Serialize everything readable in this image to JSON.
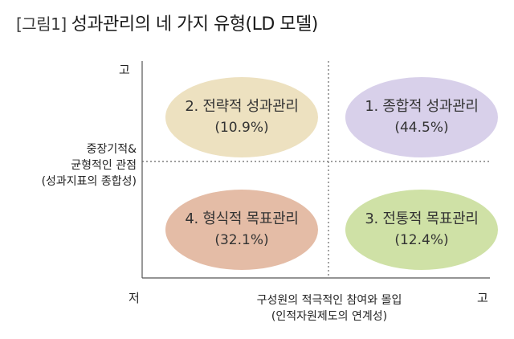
{
  "title": {
    "tag": "[그림1]",
    "text": "성과관리의 네 가지 유형(LD 모델)"
  },
  "axes": {
    "y_high": "고",
    "y_label_lines": [
      "중장기적&",
      "균형적인 관점",
      "(성과지표의 종합성)"
    ],
    "origin_low": "저",
    "x_label_lines": [
      "구성원의 적극적인 참여와 몰입",
      "(인적자원제도의 연계성)"
    ],
    "x_high": "고"
  },
  "quadrants": [
    {
      "id": "q2",
      "name": "2. 전략적 성과관리",
      "pct": "(10.9%)",
      "color": "#ede1c0"
    },
    {
      "id": "q1",
      "name": "1. 종합적 성과관리",
      "pct": "(44.5%)",
      "color": "#d8d0ea"
    },
    {
      "id": "q4",
      "name": "4. 형식적 목표관리",
      "pct": "(32.1%)",
      "color": "#e4bca6"
    },
    {
      "id": "q3",
      "name": "3. 전통적 목표관리",
      "pct": "(12.4%)",
      "color": "#cfe1a6"
    }
  ]
}
